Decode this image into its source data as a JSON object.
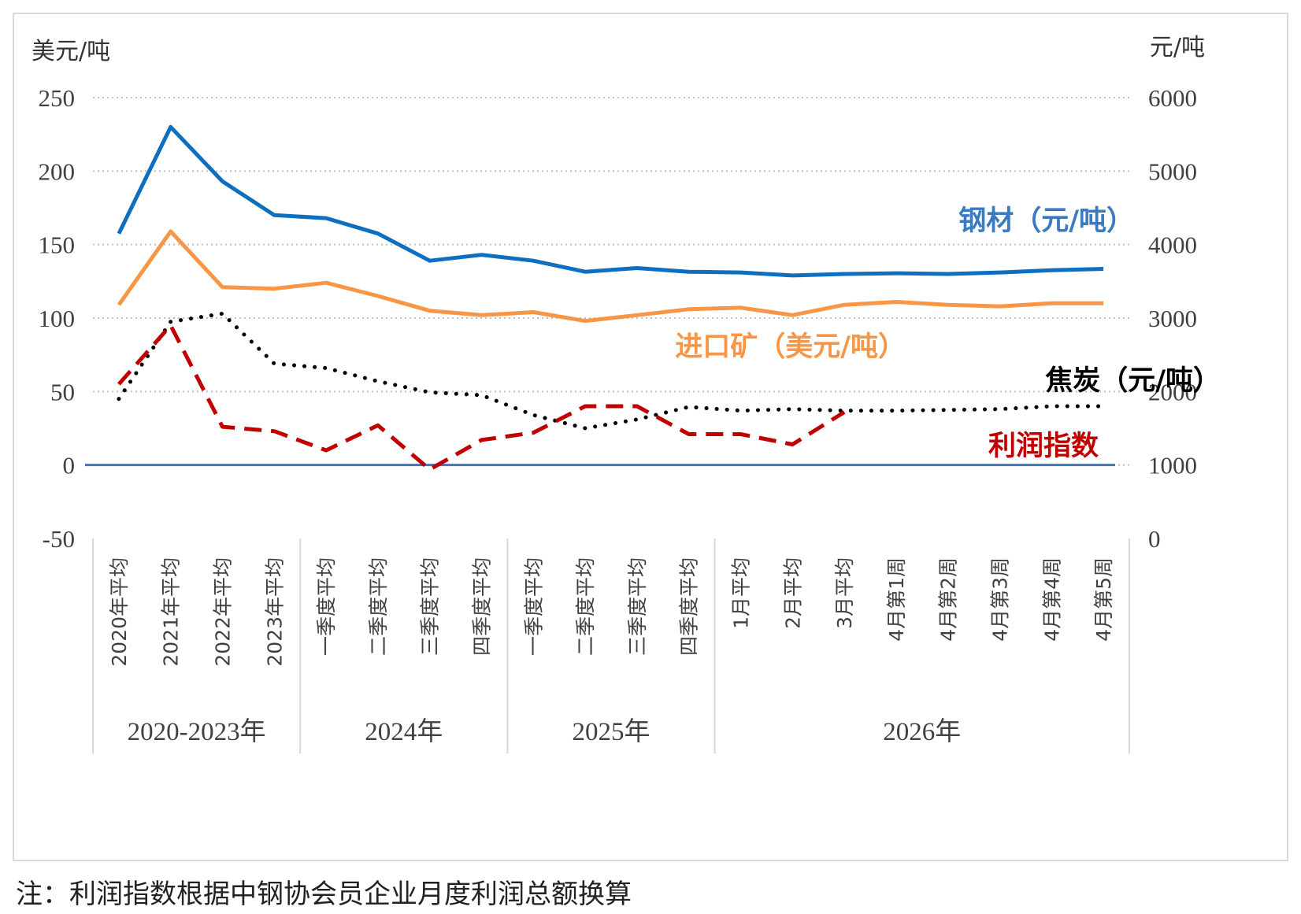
{
  "note": "注：利润指数根据中钢协会员企业月度利润总额换算",
  "chart_data": {
    "type": "line",
    "left_axis_unit": "美元/吨",
    "right_axis_unit": "元/吨",
    "left_ticks": [
      "250",
      "200",
      "150",
      "100",
      "50",
      "0",
      "-50"
    ],
    "right_ticks": [
      "6000",
      "5000",
      "4000",
      "3000",
      "2000",
      "1000",
      "0"
    ],
    "ylim_left": [
      -50,
      250
    ],
    "ylim_right": [
      0,
      6000
    ],
    "grid": "horizontal dotted",
    "categories": [
      "2020年平均",
      "2021年平均",
      "2022年平均",
      "2023年平均",
      "一季度平均",
      "二季度平均",
      "三季度平均",
      "四季度平均",
      "一季度平均",
      "二季度平均",
      "三季度平均",
      "四季度平均",
      "1月平均",
      "2月平均",
      "3月平均",
      "4月第1周",
      "4月第2周",
      "4月第3周",
      "4月第4周",
      "4月第5周"
    ],
    "groups": [
      {
        "label": "2020-2023年",
        "count": 4
      },
      {
        "label": "2024年",
        "count": 4
      },
      {
        "label": "2025年",
        "count": 4
      },
      {
        "label": "2026年",
        "count": 8
      }
    ],
    "series": [
      {
        "name": "钢材（元/吨）",
        "axis": "right",
        "color": "#0e6ec0",
        "style": "solid",
        "values": [
          4150,
          5600,
          4860,
          4400,
          4360,
          4150,
          3780,
          3860,
          3780,
          3630,
          3680,
          3630,
          3620,
          3580,
          3600,
          3610,
          3600,
          3620,
          3650,
          3670
        ]
      },
      {
        "name": "进口矿（美元/吨）",
        "axis": "left",
        "color": "#f79646",
        "style": "solid",
        "values": [
          109,
          159,
          121,
          120,
          124,
          115,
          105,
          102,
          104,
          98,
          102,
          106,
          107,
          102,
          109,
          111,
          109,
          108,
          110,
          110
        ]
      },
      {
        "name": "焦炭（元/吨）",
        "axis": "right",
        "color": "#000000",
        "style": "dotted",
        "values": [
          1900,
          2950,
          3060,
          2380,
          2320,
          2140,
          1990,
          1950,
          1680,
          1500,
          1620,
          1790,
          1740,
          1760,
          1740,
          1740,
          1750,
          1760,
          1800,
          1800
        ]
      },
      {
        "name": "利润指数",
        "axis": "left",
        "color": "#c00000",
        "style": "dashed",
        "values": [
          55,
          95,
          26,
          23,
          10,
          27,
          -3,
          17,
          22,
          40,
          40,
          21,
          21,
          14,
          36,
          null,
          null,
          null,
          null,
          null
        ]
      }
    ],
    "zero_line_color": "#4472c4",
    "label_colors": {
      "steel": "#3a7ac2",
      "ore": "#f79646",
      "coke": "#000000",
      "profit": "#c00000"
    }
  }
}
